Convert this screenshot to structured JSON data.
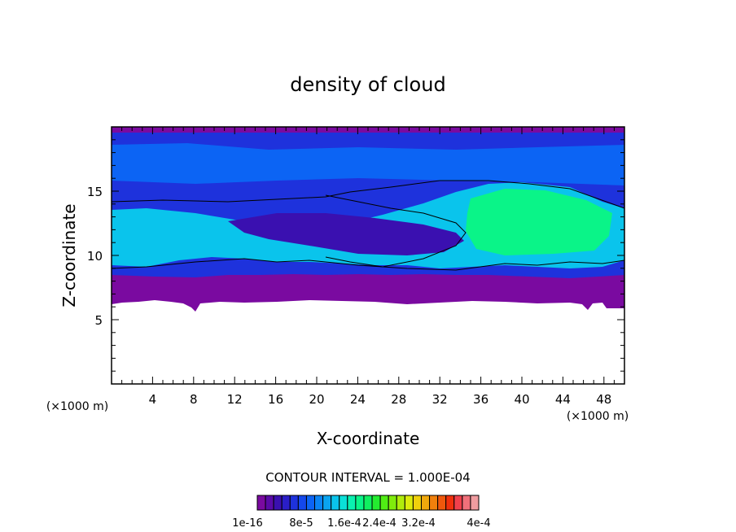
{
  "chart_data": {
    "type": "heatmap",
    "title": "density of cloud",
    "xlabel": "X-coordinate",
    "ylabel": "Z-coordinate",
    "x_unit": "(×1000 m)",
    "y_unit": "(×1000 m)",
    "xlim": [
      0,
      50
    ],
    "ylim": [
      0,
      20
    ],
    "x_ticks": [
      "4",
      "8",
      "12",
      "16",
      "20",
      "24",
      "28",
      "32",
      "36",
      "40",
      "44",
      "48"
    ],
    "y_ticks": [
      "5",
      "10",
      "15"
    ],
    "contour_interval_text": "CONTOUR INTERVAL = 1.000E-04",
    "colorbar_labels": [
      "1e-16",
      "8e-5",
      "1.6e-4",
      "2.4e-4",
      "3.2e-4",
      "4e-4"
    ],
    "colorbar_colors": [
      "#7a0aa0",
      "#5a0aa8",
      "#3a10b0",
      "#2a1ec8",
      "#1e32dc",
      "#1448ec",
      "#0c64f4",
      "#0a84f4",
      "#0aa4f0",
      "#0ac4ec",
      "#0ae0d8",
      "#0af0b0",
      "#0af488",
      "#10f060",
      "#24ec30",
      "#50ec14",
      "#80ec0c",
      "#b0ec0c",
      "#dcec0c",
      "#f0d00c",
      "#f0a80c",
      "#f0800c",
      "#f0580c",
      "#f0300c",
      "#f0404c",
      "#f0707a",
      "#f09ca0"
    ]
  }
}
